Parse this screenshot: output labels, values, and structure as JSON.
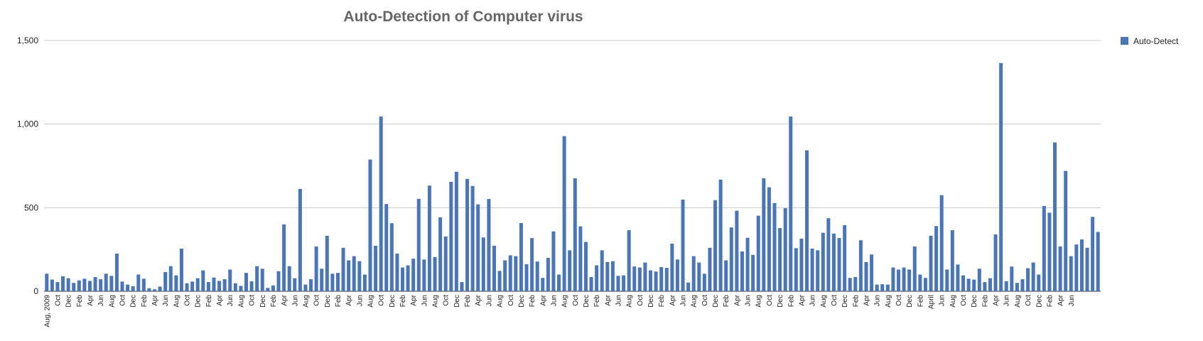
{
  "chart_data": {
    "type": "bar",
    "title": "Auto-Detection of Computer virus",
    "categories": [
      "Aug, 2009",
      null,
      "Oct",
      null,
      "Dec",
      null,
      "Feb",
      null,
      "Apr",
      null,
      "Jun",
      null,
      "Aug",
      null,
      "Oct",
      null,
      "Dec",
      null,
      "Feb",
      null,
      "Apr",
      null,
      "Jun",
      null,
      "Aug",
      null,
      "Oct",
      null,
      "Dec",
      null,
      "Feb",
      null,
      "Apr",
      null,
      "Jun",
      null,
      "Aug",
      null,
      "Oct",
      null,
      "Dec",
      null,
      "Feb",
      null,
      "Apr",
      null,
      "Jun",
      null,
      "Aug",
      null,
      "Oct",
      null,
      "Dec",
      null,
      "Feb",
      null,
      "Apr",
      null,
      "Jun",
      null,
      "Aug",
      null,
      "Oct",
      null,
      "Dec",
      null,
      "Feb",
      null,
      "Apr",
      null,
      "Jun",
      null,
      "Aug",
      null,
      "Oct",
      null,
      "Dec",
      null,
      "Feb",
      null,
      "Apr",
      null,
      "Jun",
      null,
      "Aug",
      null,
      "Oct",
      null,
      "Dec",
      null,
      "Feb",
      null,
      "Apr",
      null,
      "Jun",
      null,
      "Aug",
      null,
      "Oct",
      null,
      "Dec",
      null,
      "Feb",
      null,
      "Apr",
      null,
      "Jun",
      null,
      "Aug",
      null,
      "Oct",
      null,
      "Dec",
      null,
      "Feb",
      null,
      "Apr",
      null,
      "Jun",
      null,
      "Aug",
      null,
      "Oct",
      null,
      "Dec",
      null,
      "Feb",
      null,
      "Apr",
      null,
      "Jun",
      null,
      "Aug",
      null,
      "Oct",
      null,
      "Dec",
      null,
      "Feb",
      null,
      "Apr",
      null,
      "Jun",
      null,
      "Aug",
      null,
      "Oct",
      null,
      "Dec",
      null,
      "Feb",
      null,
      "Apr",
      null,
      "Jun",
      null,
      "Aug",
      null,
      "Oct",
      null,
      "Dec",
      null,
      "Feb",
      null,
      "April",
      null,
      "Jun",
      null,
      "Aug",
      null,
      "Oct",
      null,
      "Dec",
      null,
      "Feb",
      null,
      "Apr",
      null,
      "Jun",
      null,
      "Aug",
      null,
      "Oct",
      null,
      "Dec",
      null,
      "Feb",
      null,
      "Apr",
      null,
      "Jun",
      null,
      null,
      null,
      null,
      null
    ],
    "series": [
      {
        "name": "Auto-Detect",
        "color": "#4a76b8",
        "values": [
          105,
          70,
          55,
          90,
          78,
          50,
          65,
          75,
          62,
          85,
          72,
          105,
          92,
          225,
          58,
          40,
          30,
          100,
          75,
          18,
          12,
          28,
          115,
          150,
          95,
          255,
          48,
          58,
          78,
          125,
          55,
          82,
          62,
          72,
          130,
          48,
          32,
          110,
          60,
          150,
          135,
          20,
          35,
          120,
          400,
          150,
          78,
          612,
          40,
          72,
          268,
          135,
          332,
          105,
          110,
          260,
          185,
          210,
          180,
          100,
          788,
          272,
          1045,
          522,
          407,
          225,
          142,
          155,
          195,
          553,
          190,
          632,
          205,
          442,
          328,
          655,
          715,
          55,
          672,
          630,
          520,
          322,
          552,
          272,
          122,
          185,
          215,
          210,
          408,
          162,
          318,
          178,
          80,
          200,
          358,
          100,
          928,
          245,
          676,
          388,
          295,
          85,
          155,
          245,
          175,
          180,
          92,
          95,
          365,
          148,
          142,
          172,
          125,
          118,
          145,
          140,
          285,
          190,
          548,
          52,
          210,
          172,
          105,
          260,
          545,
          668,
          185,
          382,
          482,
          238,
          320,
          218,
          452,
          676,
          622,
          528,
          378,
          497,
          1045,
          258,
          315,
          843,
          255,
          245,
          350,
          437,
          345,
          318,
          395,
          80,
          85,
          305,
          175,
          220,
          40,
          42,
          40,
          142,
          130,
          142,
          130,
          268,
          100,
          80,
          332,
          390,
          575,
          130,
          365,
          160,
          95,
          75,
          70,
          135,
          55,
          78,
          340,
          1365,
          60,
          148,
          50,
          72,
          138,
          172,
          100,
          510,
          470,
          890,
          268,
          720,
          210,
          280,
          310,
          260,
          445,
          355
        ]
      }
    ],
    "ylim": [
      0,
      1500
    ],
    "yticks": [
      0,
      500,
      {
        "value": 1000,
        "label": "1,000"
      },
      {
        "value": 1500,
        "label": "1,500"
      }
    ],
    "grid": true,
    "legend": "right"
  }
}
